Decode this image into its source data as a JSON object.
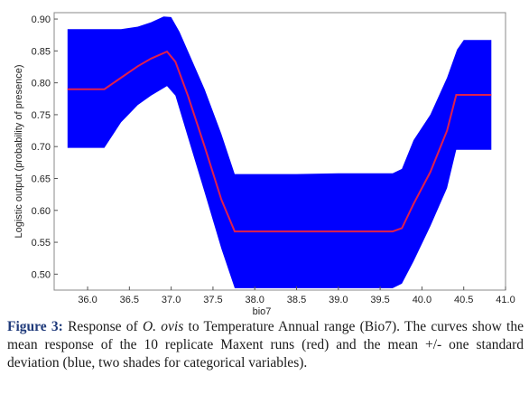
{
  "chart_data": {
    "type": "line",
    "xlabel": "bio7",
    "ylabel": "Logistic output (probability of presence)",
    "xlim": [
      35.6,
      41.0
    ],
    "ylim": [
      0.475,
      0.91
    ],
    "x_ticks": [
      "36.0",
      "36.5",
      "37.0",
      "37.5",
      "38.0",
      "38.5",
      "39.0",
      "39.5",
      "40.0",
      "40.5",
      "41.0"
    ],
    "y_ticks": [
      "0.50",
      "0.55",
      "0.60",
      "0.65",
      "0.70",
      "0.75",
      "0.80",
      "0.85",
      "0.90"
    ],
    "grid": false,
    "colors": {
      "mean": "#e0204c",
      "band": "#0000ff"
    },
    "series": [
      {
        "role": "mean",
        "x": [
          35.76,
          36.2,
          36.4,
          36.6,
          36.76,
          36.95,
          37.05,
          37.2,
          37.4,
          37.6,
          37.76,
          38.0,
          38.5,
          39.0,
          39.5,
          39.65,
          39.76,
          39.9,
          40.1,
          40.3,
          40.41,
          40.6,
          40.83
        ],
        "y": [
          0.79,
          0.79,
          0.808,
          0.826,
          0.838,
          0.849,
          0.833,
          0.78,
          0.7,
          0.617,
          0.567,
          0.567,
          0.567,
          0.567,
          0.567,
          0.567,
          0.572,
          0.61,
          0.66,
          0.725,
          0.781,
          0.781,
          0.781
        ]
      },
      {
        "role": "mean_plus_sd",
        "x": [
          35.76,
          36.2,
          36.4,
          36.6,
          36.76,
          36.91,
          37.0,
          37.1,
          37.2,
          37.4,
          37.6,
          37.76,
          38.0,
          38.5,
          39.0,
          39.5,
          39.65,
          39.76,
          39.9,
          40.1,
          40.3,
          40.42,
          40.5,
          40.83
        ],
        "y": [
          0.884,
          0.884,
          0.884,
          0.888,
          0.895,
          0.904,
          0.903,
          0.88,
          0.85,
          0.79,
          0.72,
          0.657,
          0.657,
          0.657,
          0.658,
          0.658,
          0.658,
          0.665,
          0.71,
          0.75,
          0.808,
          0.852,
          0.867,
          0.867
        ]
      },
      {
        "role": "mean_minus_sd",
        "x": [
          35.76,
          36.2,
          36.4,
          36.6,
          36.76,
          36.95,
          37.05,
          37.2,
          37.4,
          37.6,
          37.76,
          38.0,
          38.5,
          39.0,
          39.5,
          39.65,
          39.76,
          39.9,
          40.1,
          40.3,
          40.41,
          40.6,
          40.83
        ],
        "y": [
          0.698,
          0.698,
          0.738,
          0.765,
          0.78,
          0.795,
          0.78,
          0.715,
          0.628,
          0.54,
          0.478,
          0.478,
          0.478,
          0.478,
          0.478,
          0.478,
          0.485,
          0.52,
          0.575,
          0.635,
          0.695,
          0.695,
          0.695
        ]
      }
    ]
  },
  "caption": {
    "label": "Figure 3:",
    "pre": " Response of ",
    "species": "O. ovis",
    "post": " to Temperature Annual range (Bio7). The curves show the mean response of the 10 replicate Maxent runs (red) and the mean +/- one standard deviation (blue, two shades for categorical variables)."
  }
}
